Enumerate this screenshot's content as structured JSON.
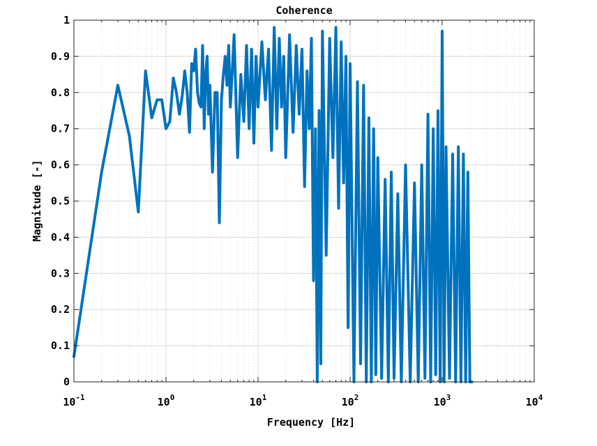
{
  "chart_data": {
    "type": "line",
    "title": "Coherence",
    "xlabel": "Frequency [Hz]",
    "ylabel": "Magnitude [-]",
    "xscale": "log",
    "xlim": [
      0.1,
      10000
    ],
    "ylim": [
      0,
      1
    ],
    "grid": true,
    "minor_grid": true,
    "legend": "none",
    "line_color": "#0072BD",
    "x_ticks": [
      {
        "base": "10",
        "exp": "-1"
      },
      {
        "base": "10",
        "exp": "0"
      },
      {
        "base": "10",
        "exp": "1"
      },
      {
        "base": "10",
        "exp": "2"
      },
      {
        "base": "10",
        "exp": "3"
      },
      {
        "base": "10",
        "exp": "4"
      }
    ],
    "y_ticks": [
      "0",
      "0.1",
      "0.2",
      "0.3",
      "0.4",
      "0.5",
      "0.6",
      "0.7",
      "0.8",
      "0.9",
      "1"
    ],
    "series": [
      {
        "x": [
          0.1,
          0.2,
          0.3,
          0.4,
          0.5,
          0.6,
          0.7,
          0.8,
          0.9,
          1.0,
          1.1,
          1.2,
          1.3,
          1.4,
          1.5,
          1.6,
          1.7,
          1.8,
          1.9,
          2.0,
          2.1,
          2.2,
          2.3,
          2.4,
          2.5,
          2.6,
          2.7,
          2.8,
          2.9,
          3.0,
          3.2,
          3.4,
          3.6,
          3.8,
          4.0,
          4.2,
          4.4,
          4.6,
          4.8,
          5.0,
          5.5,
          6.0,
          6.5,
          7.0,
          7.5,
          8.0,
          8.5,
          9.0,
          9.5,
          10,
          11,
          12,
          13,
          14,
          15,
          16,
          17,
          18,
          19,
          20,
          22,
          24,
          26,
          28,
          30,
          32,
          34,
          36,
          38,
          40,
          42,
          44,
          46,
          48,
          50,
          55,
          60,
          65,
          70,
          75,
          80,
          85,
          90,
          95,
          100,
          110,
          120,
          130,
          140,
          150,
          160,
          170,
          180,
          190,
          200,
          220,
          240,
          260,
          280,
          300,
          330,
          360,
          400,
          450,
          500,
          550,
          600,
          650,
          700,
          750,
          800,
          850,
          900,
          950,
          1000,
          1050,
          1100,
          1200,
          1300,
          1400,
          1500,
          1600,
          1700,
          1800,
          1900,
          2000,
          2100
        ],
        "y": [
          0.07,
          0.58,
          0.82,
          0.68,
          0.47,
          0.86,
          0.73,
          0.78,
          0.78,
          0.7,
          0.72,
          0.84,
          0.8,
          0.74,
          0.79,
          0.86,
          0.8,
          0.69,
          0.88,
          0.86,
          0.92,
          0.8,
          0.77,
          0.76,
          0.93,
          0.7,
          0.85,
          0.9,
          0.74,
          0.82,
          0.58,
          0.8,
          0.8,
          0.44,
          0.78,
          0.85,
          0.9,
          0.82,
          0.93,
          0.76,
          0.96,
          0.62,
          0.85,
          0.72,
          0.93,
          0.7,
          0.92,
          0.66,
          0.9,
          0.76,
          0.94,
          0.78,
          0.92,
          0.64,
          0.98,
          0.7,
          0.95,
          0.76,
          0.9,
          0.62,
          0.96,
          0.69,
          0.93,
          0.74,
          0.92,
          0.54,
          0.86,
          0.7,
          0.95,
          0.28,
          0.7,
          0.0,
          0.75,
          0.05,
          0.97,
          0.35,
          0.95,
          0.62,
          0.98,
          0.48,
          0.94,
          0.55,
          0.9,
          0.15,
          0.88,
          0.0,
          0.83,
          0.05,
          0.82,
          0.0,
          0.73,
          0.0,
          0.7,
          0.02,
          0.62,
          0.01,
          0.56,
          0.0,
          0.58,
          0.01,
          0.52,
          0.0,
          0.6,
          0.0,
          0.55,
          0.0,
          0.6,
          0.01,
          0.74,
          0.0,
          0.7,
          0.02,
          0.75,
          0.0,
          0.97,
          0.0,
          0.65,
          0.01,
          0.63,
          0.0,
          0.65,
          0.0,
          0.63,
          0.0,
          0.58,
          0.0,
          0.0
        ]
      }
    ]
  }
}
